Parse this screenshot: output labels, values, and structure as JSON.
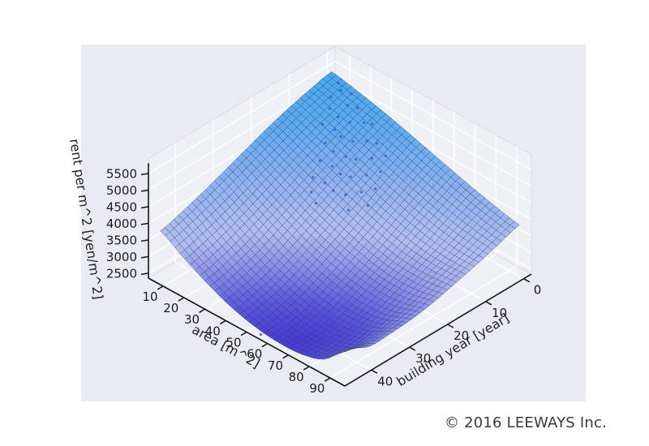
{
  "page": {
    "background": "#ffffff",
    "panel_bg": "#eaeaf2",
    "footer": {
      "text": "© 2016 LEEWAYS Inc.",
      "color": "#3a3a3a"
    }
  },
  "chart_data": {
    "type": "surface3d",
    "title": "",
    "xlabel": "area [m^2]",
    "ylabel": "building year [year]",
    "zlabel": "rent per m^2 [yen/m^2]",
    "x_ticks": [
      10,
      20,
      30,
      40,
      50,
      60,
      70,
      80,
      90
    ],
    "y_ticks": [
      0,
      10,
      20,
      30,
      40
    ],
    "z_ticks": [
      2500,
      3000,
      3500,
      4000,
      4500,
      5000,
      5500
    ],
    "x_range": [
      5,
      95
    ],
    "y_range": [
      0,
      45
    ],
    "z_axis_range": [
      2500,
      5500
    ],
    "grid": {
      "areas": [
        5,
        16.25,
        27.5,
        38.75,
        50,
        61.25,
        72.5,
        83.75,
        95
      ],
      "years": [
        0,
        5.625,
        11.25,
        16.875,
        22.5,
        28.125,
        33.75,
        39.375,
        45
      ],
      "rent": [
        [
          5400,
          5260,
          5090,
          4890,
          4670,
          4450,
          4240,
          4050,
          3900
        ],
        [
          5260,
          5070,
          4850,
          4610,
          4380,
          4150,
          3950,
          3800,
          3690
        ],
        [
          5080,
          4840,
          4570,
          4290,
          4030,
          3800,
          3610,
          3500,
          3480
        ],
        [
          4860,
          4570,
          4260,
          3950,
          3670,
          3440,
          3290,
          3250,
          3300
        ],
        [
          4610,
          4280,
          3930,
          3600,
          3320,
          3100,
          2980,
          2990,
          3130
        ],
        [
          4350,
          3980,
          3610,
          3270,
          2990,
          2790,
          2700,
          2760,
          3010
        ],
        [
          4100,
          3700,
          3300,
          2950,
          2690,
          2510,
          2460,
          2580,
          2960
        ],
        [
          3880,
          3460,
          3060,
          2730,
          2490,
          2350,
          2340,
          2500,
          2950
        ],
        [
          3700,
          3280,
          2900,
          2590,
          2390,
          2300,
          2330,
          2560,
          3250
        ]
      ]
    },
    "scatter": {
      "color": "#2f5fe0",
      "points": [
        [
          10,
          1,
          5300
        ],
        [
          13,
          2,
          5250
        ],
        [
          16,
          1,
          5180
        ],
        [
          12,
          4,
          5150
        ],
        [
          18,
          3,
          5050
        ],
        [
          21,
          2,
          5000
        ],
        [
          15,
          6,
          5050
        ],
        [
          19,
          6,
          4930
        ],
        [
          23,
          5,
          4850
        ],
        [
          26,
          3,
          4800
        ],
        [
          28,
          2,
          4760
        ],
        [
          17,
          9,
          4850
        ],
        [
          21,
          8,
          4760
        ],
        [
          24,
          8,
          4650
        ],
        [
          28,
          7,
          4580
        ],
        [
          31,
          5,
          4560
        ],
        [
          34,
          4,
          4520
        ],
        [
          22,
          11,
          4600
        ],
        [
          26,
          11,
          4480
        ],
        [
          30,
          10,
          4400
        ],
        [
          33,
          9,
          4350
        ],
        [
          37,
          7,
          4380
        ],
        [
          40,
          5,
          4420
        ],
        [
          25,
          14,
          4380
        ],
        [
          29,
          13,
          4280
        ],
        [
          33,
          13,
          4180
        ],
        [
          36,
          12,
          4130
        ],
        [
          40,
          10,
          4180
        ],
        [
          43,
          8,
          4250
        ],
        [
          27,
          17,
          4150
        ],
        [
          31,
          16,
          4050
        ],
        [
          35,
          16,
          3960
        ],
        [
          39,
          15,
          3900
        ],
        [
          43,
          13,
          3980
        ],
        [
          46,
          11,
          4050
        ],
        [
          30,
          19,
          3950
        ],
        [
          34,
          20,
          3820
        ],
        [
          44,
          17,
          3750
        ],
        [
          48,
          14,
          3820
        ],
        [
          55,
          46,
          2380
        ]
      ]
    },
    "colormap": {
      "range": [
        2300,
        5500
      ],
      "stops": [
        {
          "t": 0.0,
          "c": "#4238d6"
        },
        {
          "t": 0.08,
          "c": "#5552dd"
        },
        {
          "t": 0.17,
          "c": "#7478e5"
        },
        {
          "t": 0.27,
          "c": "#989eeb"
        },
        {
          "t": 0.36,
          "c": "#adbaef"
        },
        {
          "t": 0.46,
          "c": "#a3b8f0"
        },
        {
          "t": 0.6,
          "c": "#87aef2"
        },
        {
          "t": 0.78,
          "c": "#5ea8f3"
        },
        {
          "t": 1.0,
          "c": "#38a6f0"
        }
      ]
    },
    "mesh": {
      "steps": 38,
      "line_color": "rgba(40,52,70,0.45)"
    },
    "panes": {
      "fill": "#efeff6",
      "grid_color": "#ffffff",
      "edge_color": "#dcdce6"
    },
    "axis": {
      "line_color": "#151515",
      "tick_label_color": "#1c1c1c",
      "label_color": "#222222"
    }
  }
}
